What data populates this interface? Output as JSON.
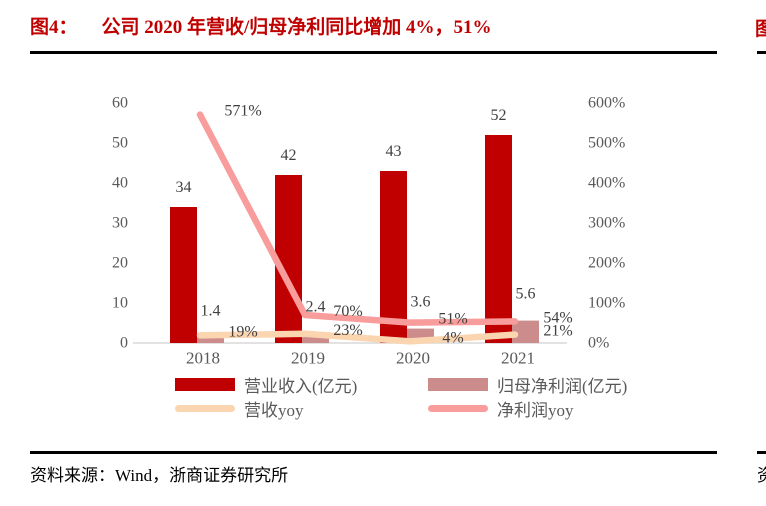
{
  "header": {
    "figure_label": "图4：",
    "title": "公司 2020 年营收/归母净利同比增加 4%，51%"
  },
  "footer": {
    "source": "资料来源：Wind，浙商证券研究所"
  },
  "adjacent_column": {
    "top_partial_text": "图",
    "bottom_partial_text": "资"
  },
  "colors": {
    "title_red": "#C00000",
    "revenue_bar": "#C00000",
    "net_profit_bar": "#CD8C8C",
    "revenue_yoy_line": "#FBD5AF",
    "net_profit_yoy_line": "#F89C9C",
    "axis_text": "#595959",
    "data_label_text": "#404040",
    "axis_line": "#D9D9D9",
    "rule_black": "#000000"
  },
  "chart_data": {
    "type": "combo: clustered bar + line, dual axis",
    "categories": [
      "2018",
      "2019",
      "2020",
      "2021"
    ],
    "series": [
      {
        "name": "营业收入(亿元)",
        "chart_type": "bar",
        "axis": "left",
        "color": "#C00000",
        "values": [
          34,
          42,
          43,
          52
        ],
        "data_labels": [
          "34",
          "42",
          "43",
          "52"
        ]
      },
      {
        "name": "归母净利润(亿元)",
        "chart_type": "bar",
        "axis": "left",
        "color": "#CD8C8C",
        "values": [
          1.4,
          2.4,
          3.6,
          5.6
        ],
        "data_labels": [
          "1.4",
          "2.4",
          "3.6",
          "5.6"
        ]
      },
      {
        "name": "营收yoy",
        "chart_type": "line",
        "axis": "right",
        "color": "#FBD5AF",
        "values": [
          19,
          23,
          4,
          21
        ],
        "data_labels": [
          "19%",
          "23%",
          "4%",
          "21%"
        ]
      },
      {
        "name": "净利润yoy",
        "chart_type": "line",
        "axis": "right",
        "color": "#F89C9C",
        "values": [
          571,
          70,
          51,
          54
        ],
        "data_labels": [
          "571%",
          "70%",
          "51%",
          "54%"
        ]
      }
    ],
    "left_axis": {
      "min": 0,
      "max": 60,
      "step": 10,
      "tick_labels": [
        "0",
        "10",
        "20",
        "30",
        "40",
        "50",
        "60"
      ]
    },
    "right_axis": {
      "min": 0,
      "max": 600,
      "step": 100,
      "tick_labels": [
        "0%",
        "100%",
        "200%",
        "300%",
        "400%",
        "500%",
        "600%"
      ]
    },
    "gridlines": false,
    "legend_position": "bottom"
  }
}
